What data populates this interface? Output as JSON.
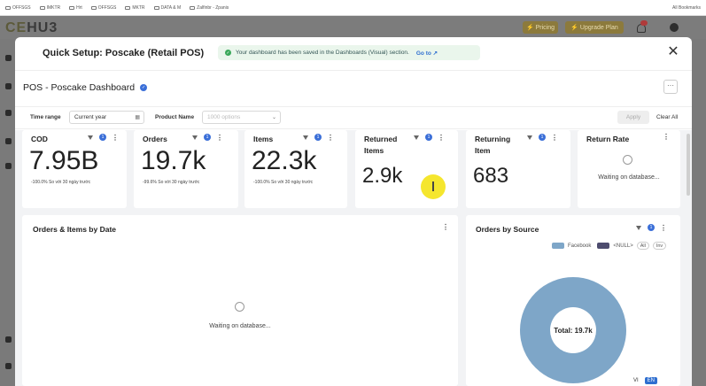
{
  "browser": {
    "bookmarks": [
      "OFFSGS",
      "IMKTR",
      "Hrt",
      "OFFSGS",
      "MKTR",
      "DATA & M",
      "Zalfinbr - Zpanis"
    ],
    "right_bookmark": "All Bookmarks"
  },
  "app": {
    "logo_left": "CE",
    "logo_right": "HU3",
    "pricing_label": "Pricing",
    "upgrade_label": "Upgrade Plan",
    "notification_count": "9"
  },
  "modal": {
    "title": "Quick Setup: Poscake (Retail POS)",
    "toast_text": "Your dashboard has been saved in the Dashboards (Visual) section.",
    "toast_link": "Go to",
    "close_glyph": "✕"
  },
  "dashboard": {
    "title": "POS - Poscake Dashboard",
    "more_glyph": "···"
  },
  "filters": {
    "time_range_label": "Time range",
    "time_range_value": "Current year",
    "product_name_label": "Product Name",
    "product_name_placeholder": "1000 options",
    "apply_label": "Apply",
    "clear_all_label": "Clear All"
  },
  "kpis": [
    {
      "title": "COD",
      "filter_count": "1",
      "value": "7.95B",
      "delta": "-100.0% So với 30 ngày trước"
    },
    {
      "title": "Orders",
      "filter_count": "1",
      "value": "19.7k",
      "delta": "-99.6% So với 30 ngày trước"
    },
    {
      "title": "Items",
      "filter_count": "1",
      "value": "22.3k",
      "delta": "-100.0% So với 30 ngày trước"
    },
    {
      "title": "Returned Items",
      "filter_count": "1",
      "value": "2.9k",
      "delta": ""
    },
    {
      "title": "Returning Item",
      "filter_count": "1",
      "value": "683",
      "delta": ""
    },
    {
      "title": "Return Rate",
      "filter_count": "",
      "value": "",
      "waiting": "Waiting on database..."
    }
  ],
  "charts": {
    "orders_items": {
      "title": "Orders & Items by Date",
      "waiting": "Waiting on database..."
    },
    "orders_by_source": {
      "title": "Orders by Source",
      "filter_count": "1",
      "legend": [
        {
          "label": "Facebook",
          "color": "#7ea6c8"
        },
        {
          "label": "<NULL>",
          "color": "#4d4c6e"
        }
      ],
      "legend_buttons": [
        "All",
        "Inv"
      ],
      "center_label": "Total: 19.7k"
    }
  },
  "chart_data": {
    "type": "pie",
    "title": "Orders by Source",
    "categories": [
      "Facebook",
      "<NULL>"
    ],
    "values": [
      19.7,
      0
    ],
    "total_label": "Total: 19.7k",
    "legend_position": "top-right"
  },
  "lang": {
    "vi": "VI",
    "en": "EN"
  },
  "colors": {
    "accent": "#3b6fd8",
    "pie": "#7ea6c8",
    "toast_bg": "#eaf6ec",
    "success": "#3aa85a"
  }
}
